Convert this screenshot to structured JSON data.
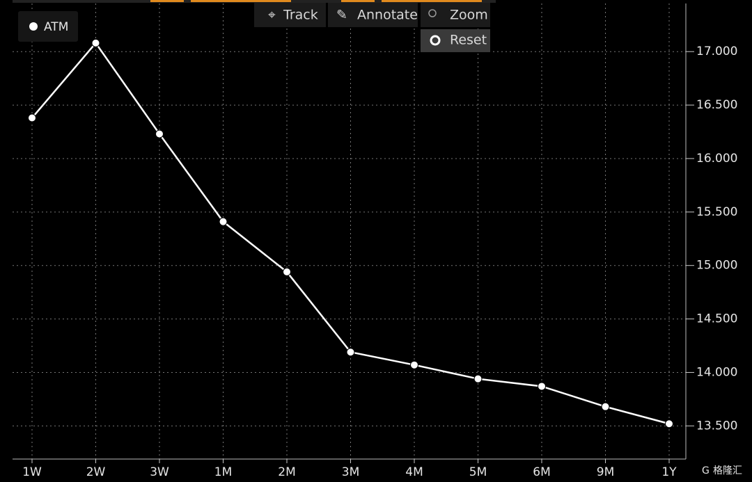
{
  "chart_data": {
    "type": "line",
    "categories": [
      "1W",
      "2W",
      "3W",
      "1M",
      "2M",
      "3M",
      "4M",
      "5M",
      "6M",
      "9M",
      "1Y"
    ],
    "series": [
      {
        "name": "ATM",
        "color": "#ffffff",
        "values": [
          16.38,
          17.08,
          16.23,
          15.41,
          14.94,
          14.19,
          14.07,
          13.94,
          13.87,
          13.68,
          13.52
        ]
      }
    ],
    "ylim": [
      13.19,
      17.45
    ],
    "yticks": [
      {
        "value": 13.5,
        "label": "13.500"
      },
      {
        "value": 14,
        "label": "14.000"
      },
      {
        "value": 14.5,
        "label": "14.500"
      },
      {
        "value": 15,
        "label": "15.000"
      },
      {
        "value": 15.5,
        "label": "15.500"
      },
      {
        "value": 16,
        "label": "16.000"
      },
      {
        "value": 16.5,
        "label": "16.500"
      },
      {
        "value": 17,
        "label": "17.000"
      }
    ],
    "grid": true
  },
  "toolbar": [
    "Track",
    "Annotate",
    "Zoom",
    "Reset"
  ],
  "watermark": "格隆汇"
}
